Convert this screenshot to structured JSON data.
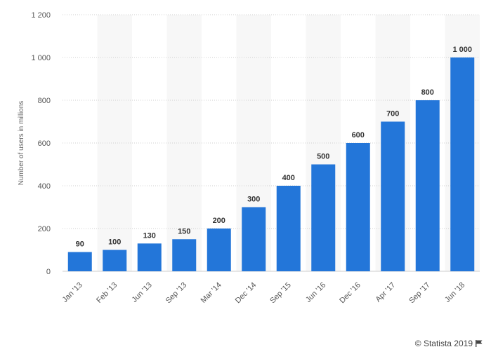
{
  "chart_data": {
    "type": "bar",
    "title": "",
    "xlabel": "",
    "ylabel": "Number of users in millions",
    "categories": [
      "Jan '13",
      "Feb '13",
      "Jun '13",
      "Sep '13",
      "Mar '14",
      "Dec '14",
      "Sep '15",
      "Jun '16",
      "Dec '16",
      "Apr '17",
      "Sep '17",
      "Jun '18"
    ],
    "values": [
      90,
      100,
      130,
      150,
      200,
      300,
      400,
      500,
      600,
      700,
      800,
      1000
    ],
    "value_labels": [
      "90",
      "100",
      "130",
      "150",
      "200",
      "300",
      "400",
      "500",
      "600",
      "700",
      "800",
      "1 000"
    ],
    "ylim": [
      0,
      1200
    ],
    "yticks": [
      0,
      200,
      400,
      600,
      800,
      1000,
      1200
    ],
    "ytick_labels": [
      "0",
      "200",
      "400",
      "600",
      "800",
      "1 000",
      "1 200"
    ],
    "grid": true,
    "bar_color": "#2376d9",
    "band_color": "#f7f7f7"
  },
  "credit": {
    "text": "© Statista 2019",
    "icon": "flag-icon"
  }
}
